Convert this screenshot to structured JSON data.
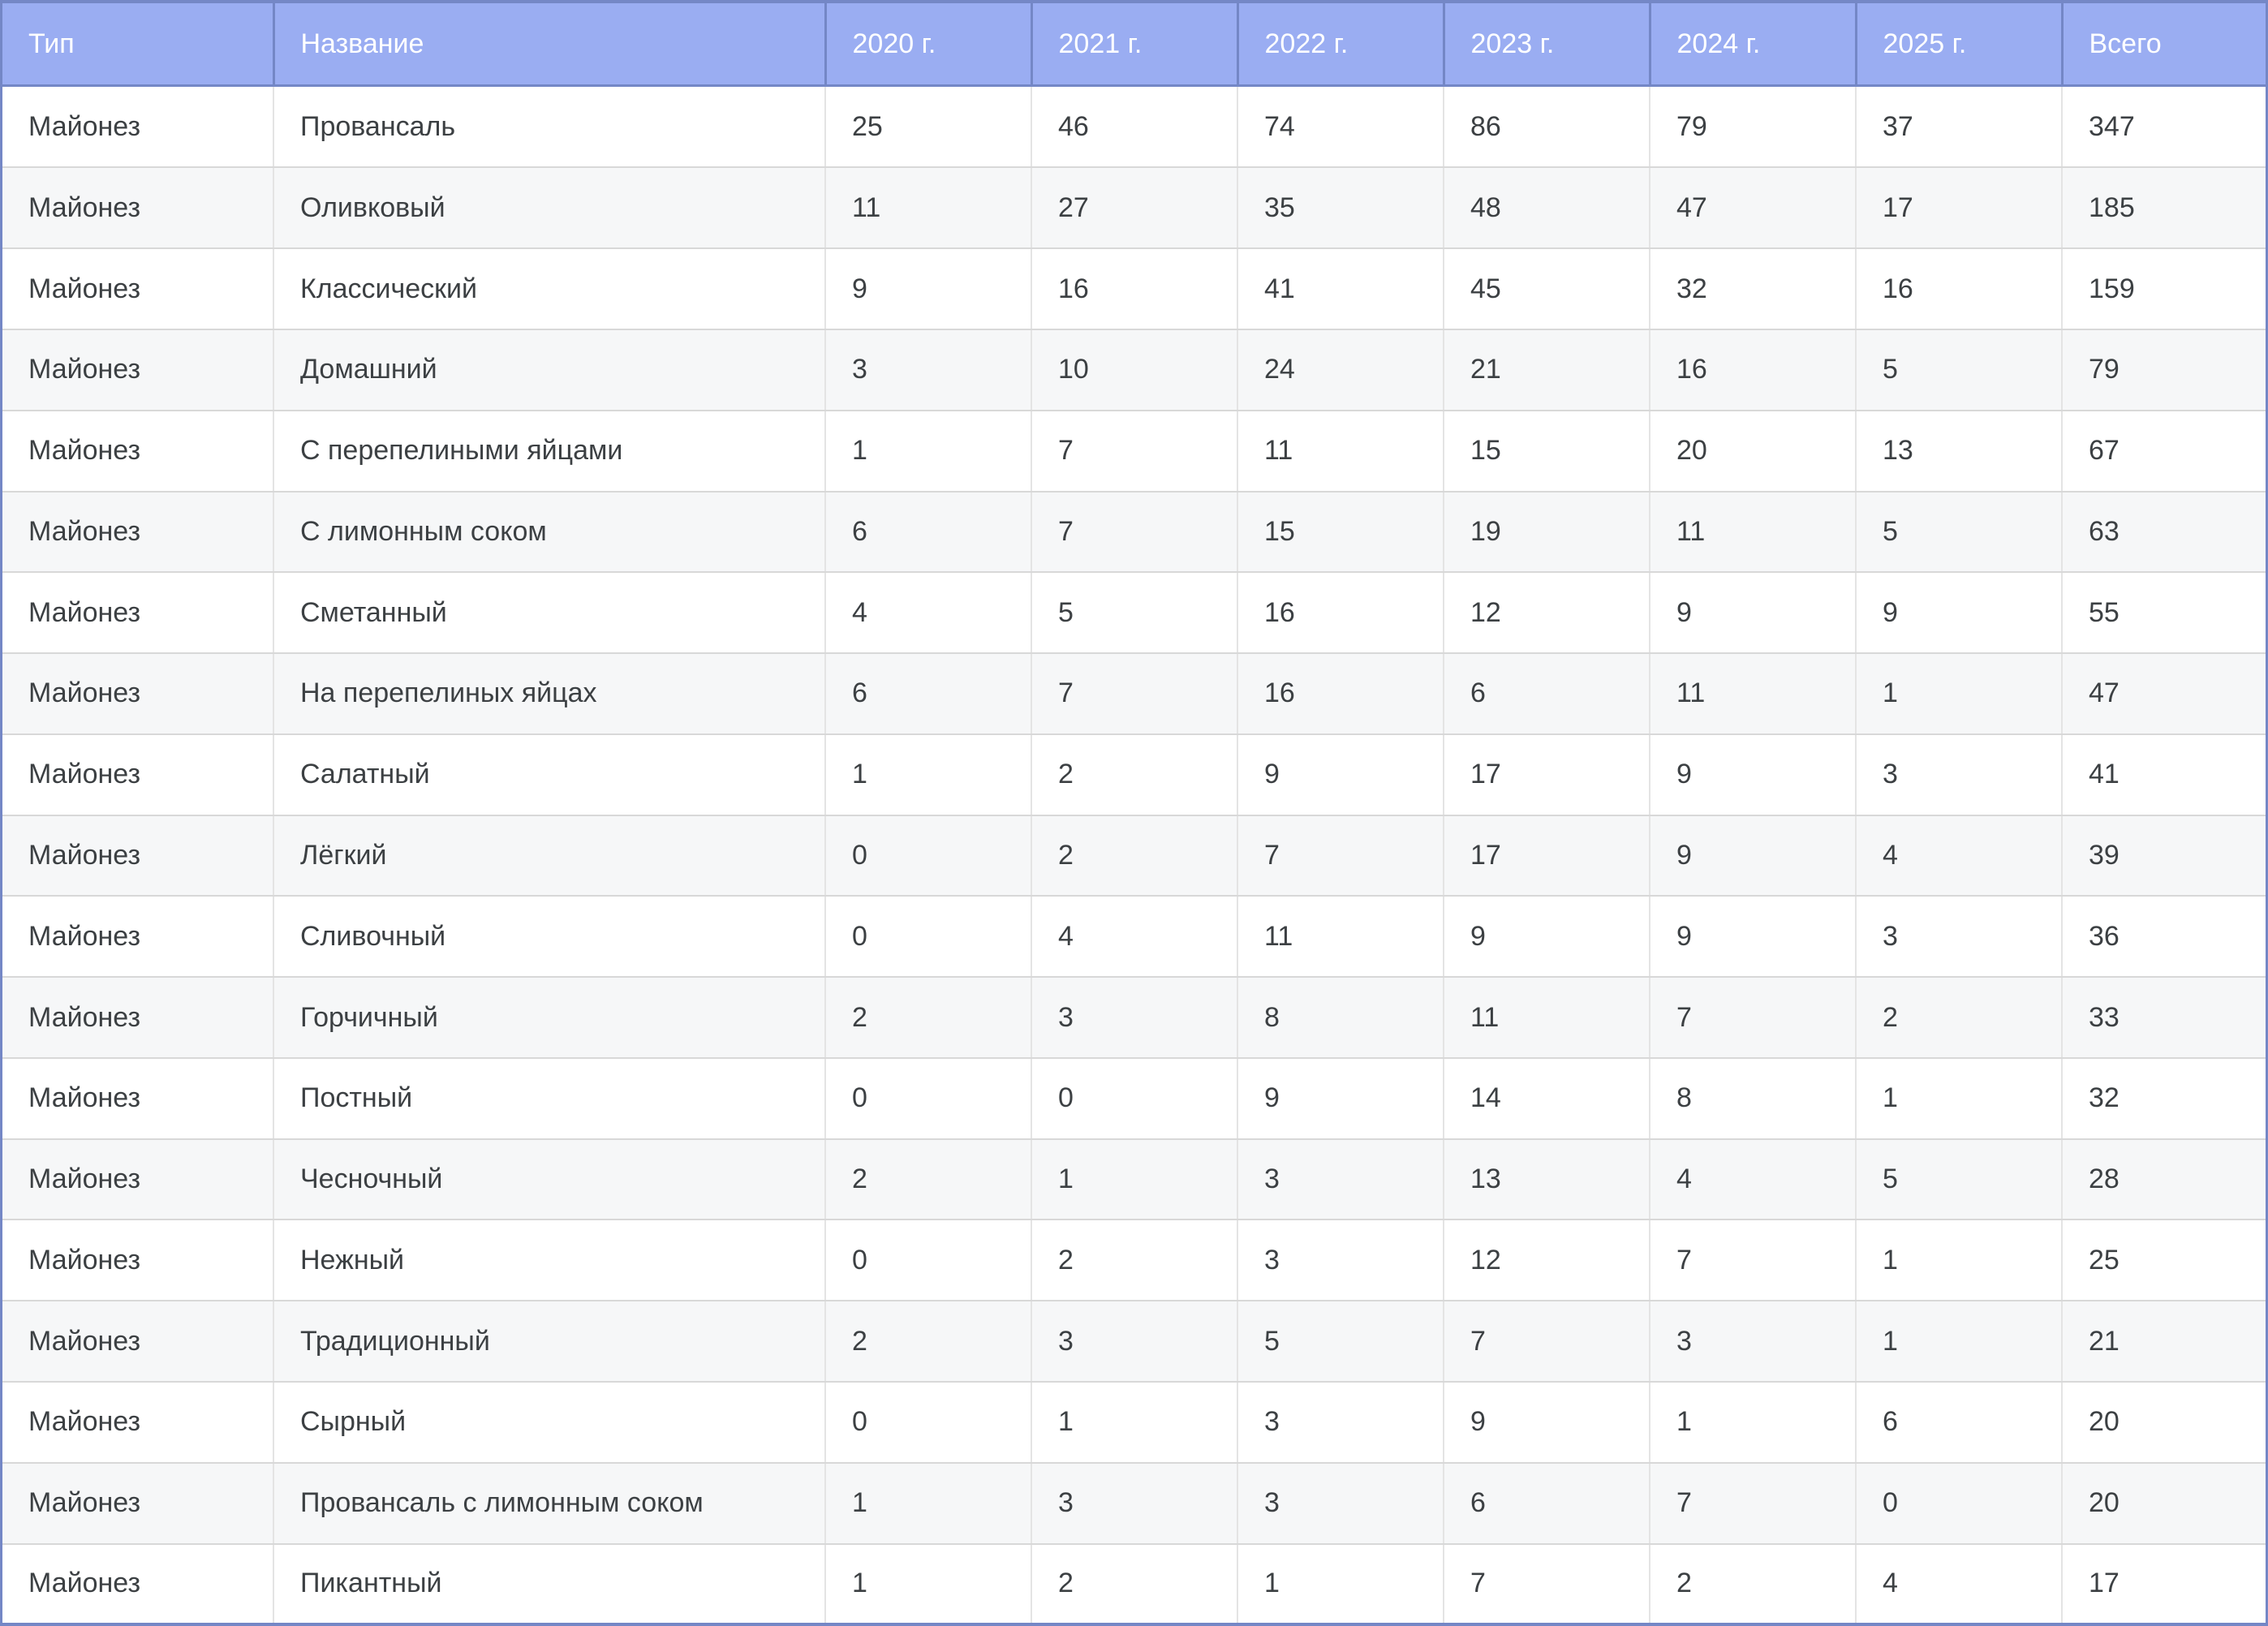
{
  "table": {
    "columns": [
      {
        "key": "type",
        "label": "Тип"
      },
      {
        "key": "name",
        "label": "Название"
      },
      {
        "key": "y2020",
        "label": "2020 г."
      },
      {
        "key": "y2021",
        "label": "2021 г."
      },
      {
        "key": "y2022",
        "label": "2022 г."
      },
      {
        "key": "y2023",
        "label": "2023 г."
      },
      {
        "key": "y2024",
        "label": "2024 г."
      },
      {
        "key": "y2025",
        "label": "2025 г."
      },
      {
        "key": "total",
        "label": "Всего"
      }
    ],
    "rows": [
      {
        "type": "Майонез",
        "name": "Провансаль",
        "y2020": 25,
        "y2021": 46,
        "y2022": 74,
        "y2023": 86,
        "y2024": 79,
        "y2025": 37,
        "total": 347
      },
      {
        "type": "Майонез",
        "name": "Оливковый",
        "y2020": 11,
        "y2021": 27,
        "y2022": 35,
        "y2023": 48,
        "y2024": 47,
        "y2025": 17,
        "total": 185
      },
      {
        "type": "Майонез",
        "name": "Классический",
        "y2020": 9,
        "y2021": 16,
        "y2022": 41,
        "y2023": 45,
        "y2024": 32,
        "y2025": 16,
        "total": 159
      },
      {
        "type": "Майонез",
        "name": "Домашний",
        "y2020": 3,
        "y2021": 10,
        "y2022": 24,
        "y2023": 21,
        "y2024": 16,
        "y2025": 5,
        "total": 79
      },
      {
        "type": "Майонез",
        "name": "С перепелиными яйцами",
        "y2020": 1,
        "y2021": 7,
        "y2022": 11,
        "y2023": 15,
        "y2024": 20,
        "y2025": 13,
        "total": 67
      },
      {
        "type": "Майонез",
        "name": "С лимонным соком",
        "y2020": 6,
        "y2021": 7,
        "y2022": 15,
        "y2023": 19,
        "y2024": 11,
        "y2025": 5,
        "total": 63
      },
      {
        "type": "Майонез",
        "name": "Сметанный",
        "y2020": 4,
        "y2021": 5,
        "y2022": 16,
        "y2023": 12,
        "y2024": 9,
        "y2025": 9,
        "total": 55
      },
      {
        "type": "Майонез",
        "name": "На перепелиных яйцах",
        "y2020": 6,
        "y2021": 7,
        "y2022": 16,
        "y2023": 6,
        "y2024": 11,
        "y2025": 1,
        "total": 47
      },
      {
        "type": "Майонез",
        "name": "Салатный",
        "y2020": 1,
        "y2021": 2,
        "y2022": 9,
        "y2023": 17,
        "y2024": 9,
        "y2025": 3,
        "total": 41
      },
      {
        "type": "Майонез",
        "name": "Лёгкий",
        "y2020": 0,
        "y2021": 2,
        "y2022": 7,
        "y2023": 17,
        "y2024": 9,
        "y2025": 4,
        "total": 39
      },
      {
        "type": "Майонез",
        "name": "Сливочный",
        "y2020": 0,
        "y2021": 4,
        "y2022": 11,
        "y2023": 9,
        "y2024": 9,
        "y2025": 3,
        "total": 36
      },
      {
        "type": "Майонез",
        "name": "Горчичный",
        "y2020": 2,
        "y2021": 3,
        "y2022": 8,
        "y2023": 11,
        "y2024": 7,
        "y2025": 2,
        "total": 33
      },
      {
        "type": "Майонез",
        "name": "Постный",
        "y2020": 0,
        "y2021": 0,
        "y2022": 9,
        "y2023": 14,
        "y2024": 8,
        "y2025": 1,
        "total": 32
      },
      {
        "type": "Майонез",
        "name": "Чесночный",
        "y2020": 2,
        "y2021": 1,
        "y2022": 3,
        "y2023": 13,
        "y2024": 4,
        "y2025": 5,
        "total": 28
      },
      {
        "type": "Майонез",
        "name": "Нежный",
        "y2020": 0,
        "y2021": 2,
        "y2022": 3,
        "y2023": 12,
        "y2024": 7,
        "y2025": 1,
        "total": 25
      },
      {
        "type": "Майонез",
        "name": "Традиционный",
        "y2020": 2,
        "y2021": 3,
        "y2022": 5,
        "y2023": 7,
        "y2024": 3,
        "y2025": 1,
        "total": 21
      },
      {
        "type": "Майонез",
        "name": "Сырный",
        "y2020": 0,
        "y2021": 1,
        "y2022": 3,
        "y2023": 9,
        "y2024": 1,
        "y2025": 6,
        "total": 20
      },
      {
        "type": "Майонез",
        "name": "Провансаль с лимонным соком",
        "y2020": 1,
        "y2021": 3,
        "y2022": 3,
        "y2023": 6,
        "y2024": 7,
        "y2025": 0,
        "total": 20
      },
      {
        "type": "Майонез",
        "name": "Пикантный",
        "y2020": 1,
        "y2021": 2,
        "y2022": 1,
        "y2023": 7,
        "y2024": 2,
        "y2025": 4,
        "total": 17
      }
    ]
  },
  "colors": {
    "header_background": "#9aadf2",
    "frame_border": "#7487c6",
    "header_text": "#ffffff",
    "body_text": "#3c4043",
    "even_row_background": "#f6f7f8",
    "odd_row_background": "#ffffff",
    "gridline_horizontal": "#d8d8d8",
    "gridline_vertical": "#e4e4e4"
  }
}
